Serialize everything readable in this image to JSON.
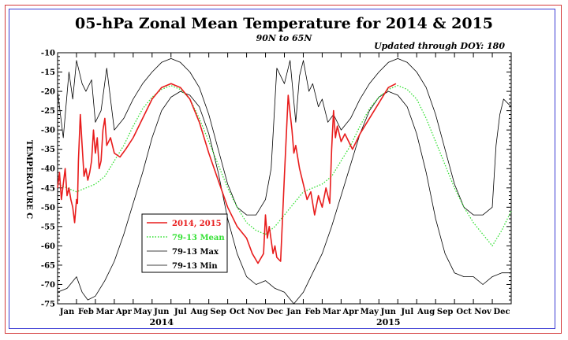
{
  "chart_data": {
    "type": "line",
    "title": "05-hPa Zonal Mean Temperature for 2014 & 2015",
    "subtitle": "90N to 65N",
    "annotation": "Updated through DOY: 180",
    "ylabel": "TEMPERATURE C",
    "xlabel": "",
    "ylim": [
      -75,
      -10
    ],
    "yticks": [
      -10,
      -15,
      -20,
      -25,
      -30,
      -35,
      -40,
      -45,
      -50,
      -55,
      -60,
      -65,
      -70,
      -75
    ],
    "xlim": [
      0,
      24
    ],
    "month_labels": [
      "Jan",
      "Feb",
      "Mar",
      "Apr",
      "May",
      "Jun",
      "Jul",
      "Aug",
      "Sep",
      "Oct",
      "Nov",
      "Dec",
      "Jan",
      "Feb",
      "Mar",
      "Apr",
      "May",
      "Jun",
      "Jul",
      "Aug",
      "Sep",
      "Oct",
      "Nov",
      "Dec"
    ],
    "year_labels": [
      {
        "text": "2014",
        "x": 5.5
      },
      {
        "text": "2015",
        "x": 17.5
      }
    ],
    "grid": false,
    "legend_position": "lower-left",
    "series": [
      {
        "name": "2014, 2015",
        "color": "#e81c1c",
        "style": "solid",
        "x": [
          0.0,
          0.1,
          0.2,
          0.3,
          0.4,
          0.5,
          0.6,
          0.7,
          0.8,
          0.9,
          1.0,
          1.05,
          1.1,
          1.2,
          1.3,
          1.4,
          1.5,
          1.6,
          1.7,
          1.8,
          1.9,
          2.0,
          2.1,
          2.2,
          2.3,
          2.4,
          2.5,
          2.6,
          2.7,
          2.8,
          3.0,
          3.3,
          3.6,
          4.0,
          4.5,
          5.0,
          5.5,
          6.0,
          6.5,
          7.0,
          7.5,
          8.0,
          8.5,
          9.0,
          9.5,
          10.0,
          10.3,
          10.6,
          10.9,
          11.0,
          11.1,
          11.2,
          11.4,
          11.5,
          11.6,
          11.8,
          12.0,
          12.2,
          12.4,
          12.5,
          12.6,
          12.8,
          13.0,
          13.2,
          13.4,
          13.6,
          13.8,
          14.0,
          14.2,
          14.4,
          14.5,
          14.6,
          14.7,
          14.8,
          15.0,
          15.2,
          15.4,
          15.6,
          16.0,
          16.5,
          17.0,
          17.5,
          17.9
        ],
        "values": [
          -45,
          -41,
          -48,
          -44,
          -40,
          -47,
          -45,
          -48,
          -50,
          -54,
          -48,
          -49,
          -38,
          -26,
          -34,
          -42,
          -40,
          -43,
          -41,
          -38,
          -30,
          -36,
          -32,
          -40,
          -38,
          -30,
          -27,
          -34,
          -33,
          -32,
          -36,
          -37,
          -35,
          -32,
          -27,
          -22,
          -19,
          -18,
          -19,
          -22,
          -28,
          -36,
          -43,
          -50,
          -55,
          -58,
          -62,
          -64.5,
          -62,
          -52,
          -58,
          -55,
          -62,
          -60,
          -63,
          -64,
          -42,
          -21,
          -30,
          -36,
          -34,
          -40,
          -44,
          -48,
          -46,
          -52,
          -47,
          -50,
          -45,
          -49,
          -35,
          -25,
          -32,
          -29,
          -33,
          -31,
          -33,
          -35,
          -31,
          -27,
          -23,
          -19,
          -18
        ]
      },
      {
        "name": "79-13 Mean",
        "color": "#33e033",
        "style": "dotted",
        "x": [
          0,
          0.5,
          1,
          1.5,
          2,
          2.5,
          3,
          3.5,
          4,
          4.5,
          5,
          5.5,
          6,
          6.5,
          7,
          7.5,
          8,
          8.5,
          9,
          9.5,
          10,
          10.5,
          11,
          11.5,
          12,
          12.5,
          13,
          13.5,
          14,
          14.5,
          15,
          15.5,
          16,
          16.5,
          17,
          17.5,
          18,
          18.5,
          19,
          19.5,
          20,
          20.5,
          21,
          21.5,
          22,
          22.5,
          23,
          23.5,
          24
        ],
        "values": [
          -44,
          -45,
          -46,
          -45,
          -44,
          -42,
          -38,
          -34,
          -29,
          -24.5,
          -21.5,
          -19.5,
          -18.5,
          -19.5,
          -22,
          -27,
          -33,
          -39,
          -45,
          -50,
          -54,
          -56,
          -57,
          -55,
          -52,
          -49,
          -46,
          -45,
          -44,
          -42,
          -38,
          -34,
          -29,
          -24.5,
          -21.5,
          -19.5,
          -18.5,
          -19.5,
          -22,
          -27,
          -33,
          -39,
          -45,
          -50,
          -54,
          -57,
          -60,
          -56,
          -51
        ]
      },
      {
        "name": "79-13 Max",
        "color": "#000000",
        "style": "solid",
        "x": [
          0,
          0.3,
          0.6,
          0.8,
          1,
          1.3,
          1.5,
          1.8,
          2,
          2.3,
          2.6,
          3,
          3.5,
          4,
          4.5,
          5,
          5.5,
          6,
          6.5,
          7,
          7.5,
          8,
          8.5,
          9,
          9.5,
          10,
          10.5,
          11,
          11.3,
          11.6,
          12,
          12.3,
          12.6,
          12.8,
          13,
          13.3,
          13.5,
          13.8,
          14,
          14.3,
          14.6,
          15,
          15.5,
          16,
          16.5,
          17,
          17.5,
          18,
          18.5,
          19,
          19.5,
          20,
          20.5,
          21,
          21.5,
          22,
          22.5,
          23,
          23.2,
          23.4,
          23.6,
          24
        ],
        "values": [
          -20,
          -32,
          -15,
          -22,
          -12,
          -18,
          -20,
          -17,
          -28,
          -25,
          -14,
          -30,
          -27,
          -22,
          -18,
          -15,
          -12.5,
          -11.5,
          -12.5,
          -15,
          -19,
          -26,
          -35,
          -44,
          -50,
          -52,
          -52,
          -48,
          -40,
          -14,
          -18,
          -12,
          -28,
          -16,
          -12,
          -20,
          -18,
          -24,
          -22,
          -28,
          -26,
          -30,
          -27,
          -22,
          -18,
          -15,
          -12.5,
          -11.5,
          -12.5,
          -15,
          -19,
          -26,
          -35,
          -44,
          -50,
          -52,
          -52,
          -50,
          -34,
          -26,
          -22,
          -24
        ]
      },
      {
        "name": "79-13 Min",
        "color": "#000000",
        "style": "solid",
        "x": [
          0,
          0.5,
          1,
          1.3,
          1.6,
          2,
          2.5,
          3,
          3.5,
          4,
          4.5,
          5,
          5.5,
          6,
          6.5,
          7,
          7.5,
          8,
          8.5,
          9,
          9.5,
          10,
          10.5,
          11,
          11.5,
          12,
          12.5,
          13,
          13.5,
          14,
          14.5,
          15,
          15.5,
          16,
          16.5,
          17,
          17.5,
          18,
          18.5,
          19,
          19.5,
          20,
          20.5,
          21,
          21.5,
          22,
          22.5,
          23,
          23.5,
          24
        ],
        "values": [
          -72,
          -71,
          -68,
          -72,
          -74,
          -73,
          -69,
          -64,
          -57,
          -49,
          -41,
          -32,
          -25,
          -21.5,
          -20,
          -21,
          -24,
          -31,
          -41,
          -53,
          -62,
          -68,
          -70,
          -69,
          -71,
          -72,
          -75,
          -72,
          -67,
          -62,
          -55,
          -47,
          -39,
          -31,
          -25,
          -21.5,
          -20,
          -21,
          -24,
          -31,
          -41,
          -53,
          -62,
          -67,
          -68,
          -68,
          -70,
          -68,
          -67,
          -67
        ]
      }
    ]
  }
}
